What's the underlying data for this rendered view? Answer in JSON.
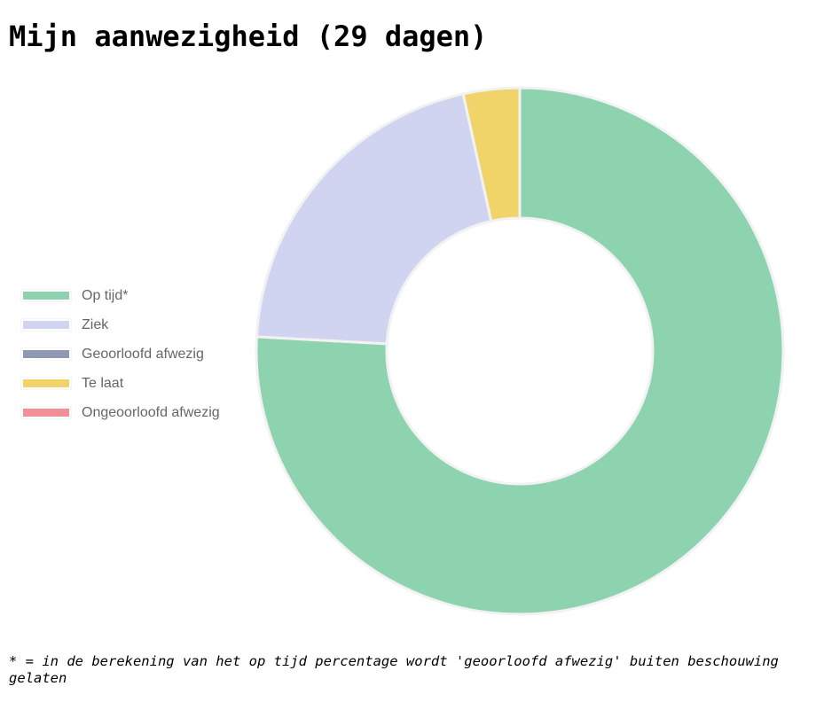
{
  "page": {
    "title": "Mijn aanwezigheid (29 dagen)",
    "footnote": "* = in de berekening van het op tijd percentage wordt 'geoorloofd afwezig' buiten beschouwing gelaten"
  },
  "chart_data": {
    "type": "pie",
    "variant": "doughnut",
    "title": "",
    "legend_position": "left",
    "categories": [
      "Op tijd*",
      "Ziek",
      "Geoorloofd afwezig",
      "Te laat",
      "Ongeoorloofd afwezig"
    ],
    "values": [
      22,
      6,
      0,
      1,
      0
    ],
    "colors": [
      "#8dd3b0",
      "#d1d4f1",
      "#8f98b2",
      "#f0d46a",
      "#f28e95"
    ],
    "segment_border_color": "#f2f2f2"
  }
}
